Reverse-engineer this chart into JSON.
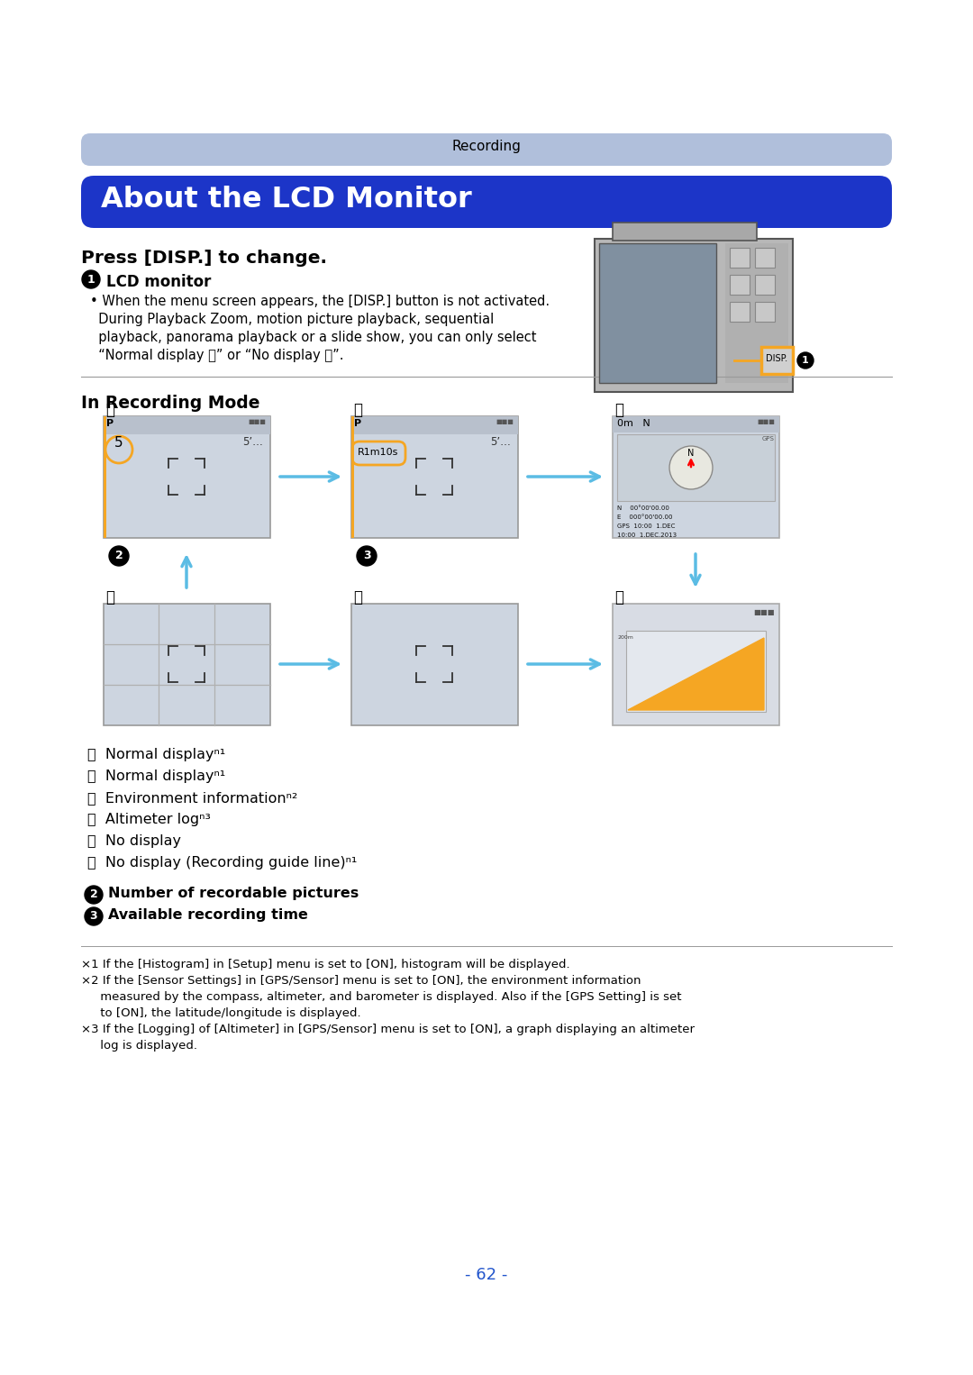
{
  "page_bg": "#ffffff",
  "top_bar_bg": "#b0bfdb",
  "top_bar_text": "Recording",
  "top_bar_text_color": "#000000",
  "title_bg": "#1c35c8",
  "title_text": "About the LCD Monitor",
  "title_text_color": "#ffffff",
  "section_heading": "Press [DISP.] to change.",
  "bullet1_text": "LCD monitor",
  "bullet1_note_lines": [
    "• When the menu screen appears, the [DISP.] button is not activated.",
    "  During Playback Zoom, motion picture playback, sequential",
    "  playback, panorama playback or a slide show, you can only select",
    "  “Normal display ⓐ” or “No display ⓚ”."
  ],
  "recording_mode_heading": "In Recording Mode",
  "orange_color": "#f5a623",
  "arrow_color": "#5bbce4",
  "list_items": [
    [
      "Ⓐ",
      "Normal display",
      "ⁿ¹"
    ],
    [
      "Ⓑ",
      "Normal display",
      "ⁿ¹"
    ],
    [
      "Ⓒ",
      "Environment information",
      "ⁿ²"
    ],
    [
      "Ⓓ",
      "Altimeter log",
      "ⁿ³"
    ],
    [
      "Ⓔ",
      "No display",
      ""
    ],
    [
      "Ⓕ",
      "No display (Recording guide line)",
      "ⁿ¹"
    ]
  ],
  "numbered_items": [
    [
      "2",
      "Number of recordable pictures"
    ],
    [
      "3",
      "Available recording time"
    ]
  ],
  "footnote_lines": [
    [
      "×1",
      " If the [Histogram] in [Setup] menu is set to [ON], histogram will be displayed."
    ],
    [
      "×2",
      " If the [Sensor Settings] in [GPS/Sensor] menu is set to [ON], the environment information"
    ],
    [
      "",
      "     measured by the compass, altimeter, and barometer is displayed. Also if the [GPS Setting] is set"
    ],
    [
      "",
      "     to [ON], the latitude/longitude is displayed."
    ],
    [
      "×3",
      " If the [Logging] of [Altimeter] in [GPS/Sensor] menu is set to [ON], a graph displaying an altimeter"
    ],
    [
      "",
      "     log is displayed."
    ]
  ],
  "page_number": "- 62 -",
  "page_number_color": "#2255cc",
  "screen_bg": "#cdd5e0",
  "screen_border": "#999999",
  "divider_color": "#999999"
}
